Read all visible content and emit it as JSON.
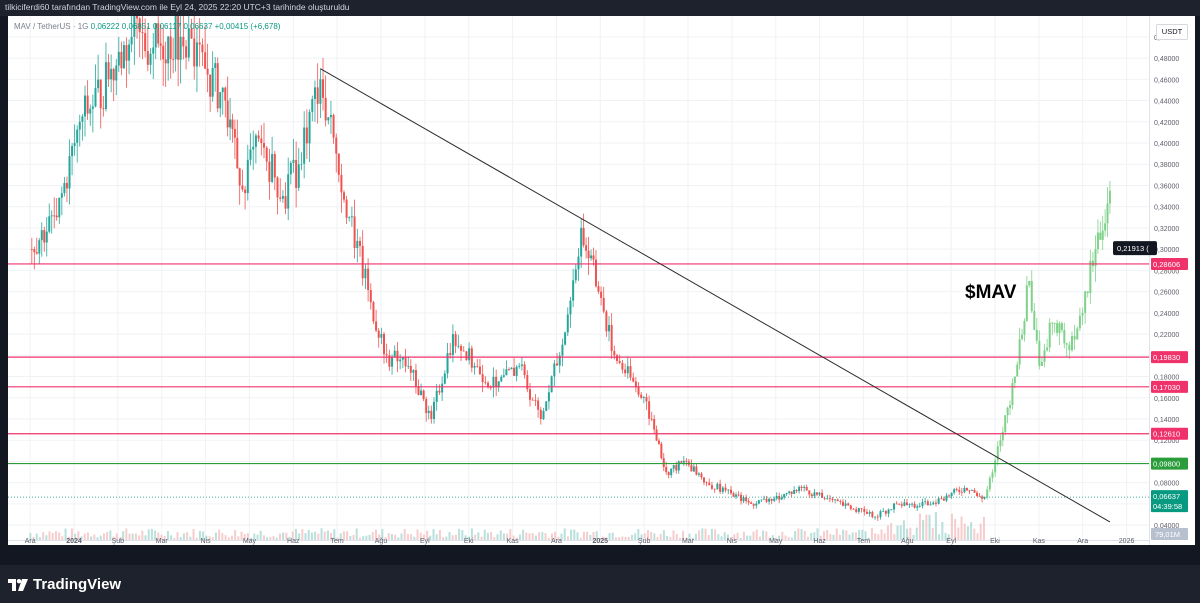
{
  "header": {
    "attribution": "tilkiciferdi60 tarafından TradingView.com ile Eyl 24, 2025 22:20 UTC+3 tarihinde oluşturuldu"
  },
  "symbol": {
    "name": "MAV / TetherUS · 1G",
    "ohlc_text": "0,06222  0,06851  0,06117  0,06637  +0,00415 (+6,678)"
  },
  "currency_button": "USDT",
  "brand": {
    "name": "TradingView",
    "logo_icon": "tradingview-logo-icon"
  },
  "colors": {
    "up": "#26a69a",
    "down": "#ef5350",
    "up_light": "#7fd18a",
    "down_light": "#f4a6a6",
    "level_line": "#f0326a",
    "support_line": "#2a9d3a",
    "trend_line": "#2b2b2b",
    "last_price": "#089981"
  },
  "chart_data": {
    "type": "candlestick",
    "title": "$MAV",
    "price_scale": [
      0.04,
      0.06,
      0.08,
      0.1,
      0.12,
      0.14,
      0.16,
      0.18,
      0.2,
      0.22,
      0.24,
      0.26,
      0.28,
      0.3,
      0.32,
      0.34,
      0.36,
      0.38,
      0.4,
      0.42,
      0.44,
      0.46,
      0.48,
      0.5
    ],
    "price_scale_labels": [
      "0,04000",
      "0,06000",
      "0,08000",
      "0,10000",
      "0,12000",
      "0,14000",
      "0,16000",
      "0,18000",
      "0,20000",
      "0,22000",
      "0,24000",
      "0,26000",
      "0,28000",
      "0,30000",
      "0,32000",
      "0,34000",
      "0,36000",
      "0,38000",
      "0,40000",
      "0,42000",
      "0,44000",
      "0,46000",
      "0,48000",
      "0,50000"
    ],
    "ylim": [
      0.026,
      0.514
    ],
    "time_labels": [
      "Ara",
      "2024",
      "Şub",
      "Mar",
      "Nis",
      "May",
      "Haz",
      "Tem",
      "Ağu",
      "Eyl",
      "Eki",
      "Kas",
      "Ara",
      "2025",
      "Şub",
      "Mar",
      "Nis",
      "May",
      "Haz",
      "Tem",
      "Ağu",
      "Eyl",
      "Eki",
      "Kas",
      "Ara",
      "2026"
    ],
    "time_label_months": [
      -1,
      0,
      1,
      2,
      3,
      4,
      5,
      6,
      7,
      8,
      9,
      10,
      11,
      12,
      13,
      14,
      15,
      16,
      17,
      18,
      19,
      20,
      21,
      22,
      23,
      24
    ],
    "horizontal_levels": [
      {
        "price": 0.28606,
        "label": "0,28606",
        "kind": "resistance"
      },
      {
        "price": 0.1983,
        "label": "0,19830",
        "kind": "resistance"
      },
      {
        "price": 0.1703,
        "label": "0,17030",
        "kind": "resistance"
      },
      {
        "price": 0.1261,
        "label": "0,12610",
        "kind": "resistance"
      },
      {
        "price": 0.098,
        "label": "0,09800",
        "kind": "support"
      }
    ],
    "trendline": {
      "start": [
        "2024-06-20",
        0.47
      ],
      "end": [
        "2025-12-20",
        0.043
      ]
    },
    "last_price": {
      "value": 0.06637,
      "label": "0,06637",
      "countdown": "04:39:58"
    },
    "projection_tag": {
      "value": 0.21913,
      "label": "0,21913 (",
      "price": 0.3
    },
    "volume_label": "79,01M",
    "actual_series": [
      {
        "date": "2023-12-01",
        "close": 0.3
      },
      {
        "date": "2023-12-20",
        "close": 0.33
      },
      {
        "date": "2024-01-05",
        "close": 0.42
      },
      {
        "date": "2024-01-25",
        "close": 0.46
      },
      {
        "date": "2024-02-10",
        "close": 0.5
      },
      {
        "date": "2024-02-25",
        "close": 0.49
      },
      {
        "date": "2024-03-15",
        "close": 0.5
      },
      {
        "date": "2024-04-01",
        "close": 0.47
      },
      {
        "date": "2024-04-15",
        "close": 0.44
      },
      {
        "date": "2024-04-25",
        "close": 0.36
      },
      {
        "date": "2024-05-10",
        "close": 0.4
      },
      {
        "date": "2024-05-25",
        "close": 0.35
      },
      {
        "date": "2024-06-05",
        "close": 0.38
      },
      {
        "date": "2024-06-20",
        "close": 0.46
      },
      {
        "date": "2024-07-01",
        "close": 0.39
      },
      {
        "date": "2024-07-10",
        "close": 0.33
      },
      {
        "date": "2024-07-25",
        "close": 0.25
      },
      {
        "date": "2024-08-05",
        "close": 0.2
      },
      {
        "date": "2024-08-20",
        "close": 0.19
      },
      {
        "date": "2024-09-05",
        "close": 0.14
      },
      {
        "date": "2024-09-20",
        "close": 0.22
      },
      {
        "date": "2024-10-05",
        "close": 0.19
      },
      {
        "date": "2024-10-20",
        "close": 0.17
      },
      {
        "date": "2024-11-05",
        "close": 0.19
      },
      {
        "date": "2024-11-20",
        "close": 0.14
      },
      {
        "date": "2024-12-05",
        "close": 0.21
      },
      {
        "date": "2024-12-18",
        "close": 0.32
      },
      {
        "date": "2024-12-30",
        "close": 0.26
      },
      {
        "date": "2025-01-10",
        "close": 0.2
      },
      {
        "date": "2025-01-25",
        "close": 0.17
      },
      {
        "date": "2025-02-05",
        "close": 0.14
      },
      {
        "date": "2025-02-15",
        "close": 0.09
      },
      {
        "date": "2025-03-01",
        "close": 0.1
      },
      {
        "date": "2025-03-15",
        "close": 0.08
      },
      {
        "date": "2025-04-01",
        "close": 0.07
      },
      {
        "date": "2025-04-15",
        "close": 0.06
      },
      {
        "date": "2025-05-01",
        "close": 0.065
      },
      {
        "date": "2025-05-20",
        "close": 0.075
      },
      {
        "date": "2025-06-05",
        "close": 0.065
      },
      {
        "date": "2025-06-25",
        "close": 0.055
      },
      {
        "date": "2025-07-10",
        "close": 0.048
      },
      {
        "date": "2025-07-25",
        "close": 0.06
      },
      {
        "date": "2025-08-10",
        "close": 0.058
      },
      {
        "date": "2025-08-25",
        "close": 0.065
      },
      {
        "date": "2025-09-10",
        "close": 0.075
      },
      {
        "date": "2025-09-24",
        "close": 0.06637
      }
    ],
    "projected_series": [
      {
        "date": "2025-09-24",
        "close": 0.066
      },
      {
        "date": "2025-10-05",
        "close": 0.12
      },
      {
        "date": "2025-10-15",
        "close": 0.18
      },
      {
        "date": "2025-10-25",
        "close": 0.27
      },
      {
        "date": "2025-11-01",
        "close": 0.19
      },
      {
        "date": "2025-11-10",
        "close": 0.23
      },
      {
        "date": "2025-11-20",
        "close": 0.21
      },
      {
        "date": "2025-12-01",
        "close": 0.24
      },
      {
        "date": "2025-12-10",
        "close": 0.3
      },
      {
        "date": "2025-12-20",
        "close": 0.355
      }
    ]
  }
}
